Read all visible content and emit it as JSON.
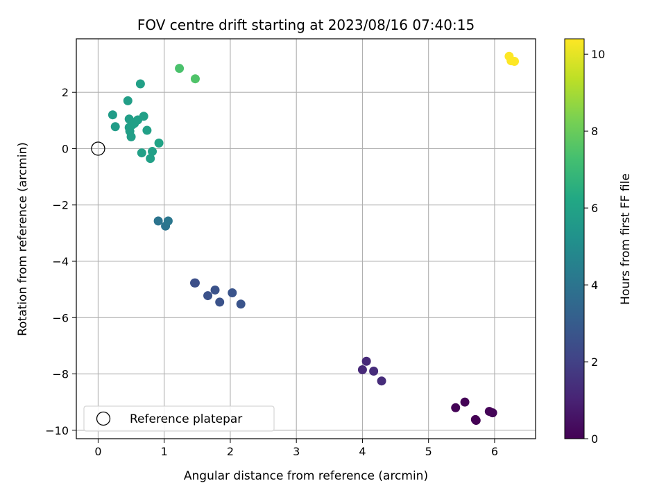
{
  "chart_data": {
    "type": "scatter",
    "title": "FOV centre drift starting at 2023/08/16 07:40:15",
    "xlabel": "Angular distance from reference (arcmin)",
    "ylabel": "Rotation from reference (arcmin)",
    "xlim": [
      -0.33,
      6.62
    ],
    "ylim": [
      -10.3,
      3.9
    ],
    "xticks": [
      0,
      1,
      2,
      3,
      4,
      5,
      6
    ],
    "yticks": [
      -10,
      -8,
      -6,
      -4,
      -2,
      0,
      2
    ],
    "grid": true,
    "colormap": "viridis",
    "colorbar": {
      "label": "Hours from first FF file",
      "range": [
        0,
        10.4
      ],
      "ticks": [
        0,
        2,
        4,
        6,
        8,
        10
      ]
    },
    "reference": {
      "x": 0,
      "y": 0,
      "label": "Reference platepar"
    },
    "legend_location": "lower-left",
    "points": [
      {
        "x": 5.41,
        "y": -9.2,
        "hours": 0.05
      },
      {
        "x": 5.55,
        "y": -9.0,
        "hours": 0.05
      },
      {
        "x": 5.71,
        "y": -9.62,
        "hours": 0.0
      },
      {
        "x": 5.72,
        "y": -9.65,
        "hours": 0.0
      },
      {
        "x": 5.92,
        "y": -9.33,
        "hours": 0.1
      },
      {
        "x": 5.97,
        "y": -9.38,
        "hours": 0.1
      },
      {
        "x": 4.0,
        "y": -7.85,
        "hours": 1.2
      },
      {
        "x": 4.06,
        "y": -7.55,
        "hours": 1.2
      },
      {
        "x": 4.17,
        "y": -7.9,
        "hours": 1.3
      },
      {
        "x": 4.29,
        "y": -8.25,
        "hours": 1.3
      },
      {
        "x": 1.46,
        "y": -4.77,
        "hours": 2.5
      },
      {
        "x": 1.47,
        "y": -4.77,
        "hours": 2.5
      },
      {
        "x": 1.66,
        "y": -5.22,
        "hours": 2.6
      },
      {
        "x": 1.77,
        "y": -5.02,
        "hours": 2.6
      },
      {
        "x": 1.84,
        "y": -5.45,
        "hours": 2.6
      },
      {
        "x": 2.03,
        "y": -5.12,
        "hours": 2.7
      },
      {
        "x": 2.16,
        "y": -5.52,
        "hours": 2.7
      },
      {
        "x": 0.91,
        "y": -2.57,
        "hours": 4.0
      },
      {
        "x": 1.02,
        "y": -2.75,
        "hours": 4.0
      },
      {
        "x": 1.06,
        "y": -2.57,
        "hours": 4.1
      },
      {
        "x": 0.22,
        "y": 1.2,
        "hours": 5.7
      },
      {
        "x": 0.26,
        "y": 0.78,
        "hours": 5.7
      },
      {
        "x": 0.45,
        "y": 1.7,
        "hours": 5.8
      },
      {
        "x": 0.47,
        "y": 1.05,
        "hours": 5.8
      },
      {
        "x": 0.47,
        "y": 0.75,
        "hours": 5.8
      },
      {
        "x": 0.48,
        "y": 0.62,
        "hours": 5.8
      },
      {
        "x": 0.5,
        "y": 0.42,
        "hours": 5.8
      },
      {
        "x": 0.52,
        "y": 0.85,
        "hours": 5.9
      },
      {
        "x": 0.55,
        "y": 0.9,
        "hours": 5.9
      },
      {
        "x": 0.6,
        "y": 1.02,
        "hours": 5.9
      },
      {
        "x": 0.64,
        "y": 2.3,
        "hours": 5.9
      },
      {
        "x": 0.66,
        "y": -0.15,
        "hours": 5.9
      },
      {
        "x": 0.69,
        "y": 1.15,
        "hours": 5.9
      },
      {
        "x": 0.74,
        "y": 0.65,
        "hours": 5.9
      },
      {
        "x": 0.79,
        "y": -0.35,
        "hours": 5.9
      },
      {
        "x": 0.82,
        "y": -0.1,
        "hours": 5.9
      },
      {
        "x": 0.92,
        "y": 0.2,
        "hours": 6.0
      },
      {
        "x": 1.23,
        "y": 2.85,
        "hours": 7.4
      },
      {
        "x": 1.47,
        "y": 2.48,
        "hours": 7.5
      },
      {
        "x": 6.22,
        "y": 3.28,
        "hours": 10.4
      },
      {
        "x": 6.25,
        "y": 3.12,
        "hours": 10.4
      },
      {
        "x": 6.3,
        "y": 3.1,
        "hours": 10.4
      }
    ]
  }
}
